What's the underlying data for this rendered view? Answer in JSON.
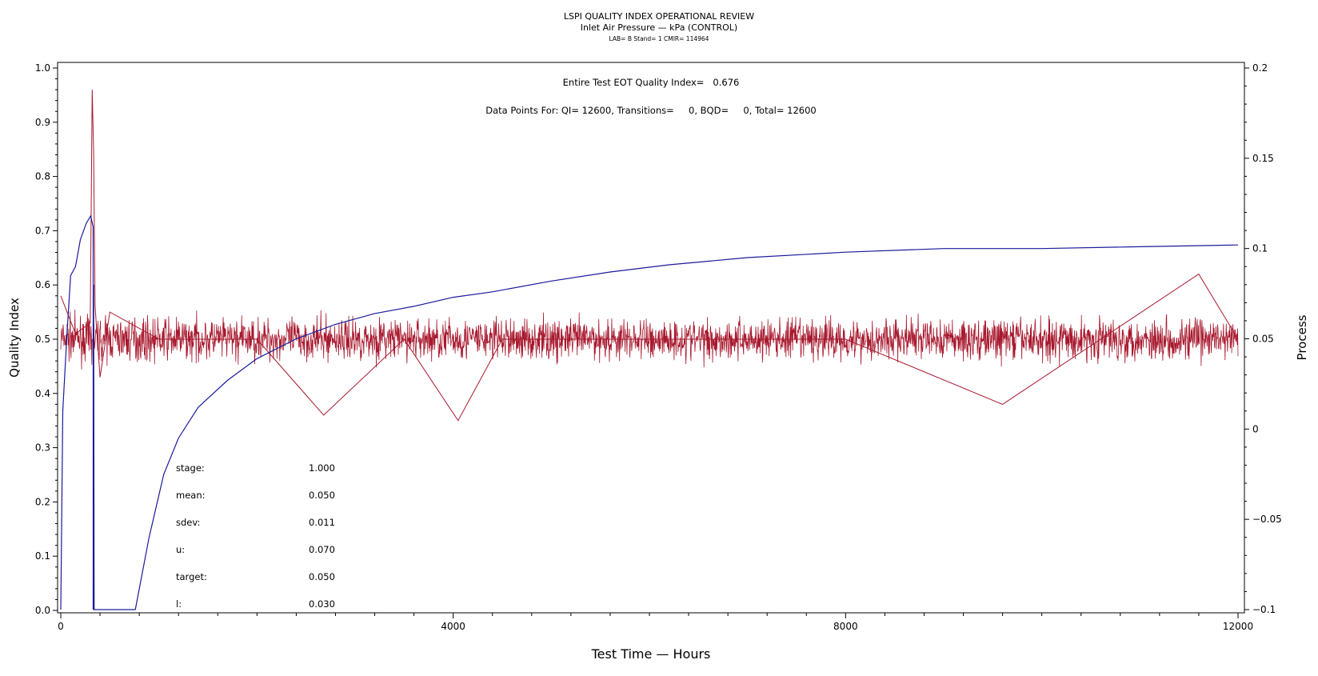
{
  "chart_data": {
    "type": "line",
    "title": "LSPI QUALITY INDEX OPERATIONAL REVIEW",
    "subtitle": "Inlet Air Pressure — kPa (CONTROL)",
    "info_line": "LAB= B Stand= 1 CMIR= 114964",
    "xlabel": "Test Time — Hours",
    "ylabel_left": "Quality Index",
    "ylabel_right": "Process",
    "xlim": [
      0,
      12000
    ],
    "ylim_left": [
      0.0,
      1.0
    ],
    "ylim_right": [
      -0.1,
      0.2
    ],
    "x_ticks": [
      "0",
      "4000",
      "8000",
      "12000"
    ],
    "y_left_ticks": [
      "0.0",
      "0.1",
      "0.2",
      "0.3",
      "0.4",
      "0.5",
      "0.6",
      "0.7",
      "0.8",
      "0.9",
      "1.0"
    ],
    "y_right_ticks": [
      "−0.1",
      "−0.05",
      "0",
      "0.05",
      "0.1",
      "0.15",
      "0.2"
    ],
    "annotations": {
      "eot": "Entire Test EOT Quality Index=   0.676",
      "points": "Data Points For: QI= 12600, Transitions=     0, BQD=     0, Total= 12600"
    },
    "stats": [
      {
        "label": "stage:",
        "value": "1.000"
      },
      {
        "label": "mean:",
        "value": "0.050"
      },
      {
        "label": "sdev:",
        "value": "0.011"
      },
      {
        "label": "u:",
        "value": "0.070"
      },
      {
        "label": "target:",
        "value": "0.050"
      },
      {
        "label": "l:",
        "value": "0.030"
      }
    ],
    "series": [
      {
        "key": "quality_index",
        "axis": "left",
        "color": "#a8192e",
        "style": "noisy band",
        "center": 0.5,
        "points": [
          [
            0,
            0.58
          ],
          [
            150,
            0.51
          ],
          [
            300,
            0.53
          ],
          [
            320,
            0.96
          ],
          [
            335,
            0.84
          ],
          [
            350,
            0.56
          ],
          [
            400,
            0.43
          ],
          [
            500,
            0.55
          ],
          [
            1000,
            0.5
          ],
          [
            2000,
            0.5
          ],
          [
            2680,
            0.36
          ],
          [
            3500,
            0.5
          ],
          [
            4050,
            0.35
          ],
          [
            4500,
            0.5
          ],
          [
            6000,
            0.5
          ],
          [
            8000,
            0.5
          ],
          [
            9600,
            0.38
          ],
          [
            11600,
            0.62
          ],
          [
            12000,
            0.5
          ]
        ]
      },
      {
        "key": "process",
        "axis": "right",
        "color": "#1a1a9c",
        "points": [
          [
            0,
            -0.1
          ],
          [
            20,
            0.01
          ],
          [
            60,
            0.05
          ],
          [
            100,
            0.085
          ],
          [
            150,
            0.09
          ],
          [
            200,
            0.105
          ],
          [
            260,
            0.114
          ],
          [
            305,
            0.118
          ],
          [
            330,
            0.112
          ],
          [
            330,
            -0.1
          ],
          [
            335,
            0.08
          ],
          [
            340,
            -0.1
          ],
          [
            760,
            -0.1
          ],
          [
            900,
            -0.06
          ],
          [
            1050,
            -0.025
          ],
          [
            1200,
            -0.005
          ],
          [
            1400,
            0.012
          ],
          [
            1700,
            0.027
          ],
          [
            2000,
            0.039
          ],
          [
            2400,
            0.05
          ],
          [
            2800,
            0.058
          ],
          [
            3200,
            0.064
          ],
          [
            3600,
            0.068
          ],
          [
            4000,
            0.073
          ],
          [
            4400,
            0.076
          ],
          [
            5000,
            0.082
          ],
          [
            5600,
            0.087
          ],
          [
            6200,
            0.091
          ],
          [
            7000,
            0.095
          ],
          [
            8000,
            0.098
          ],
          [
            9000,
            0.1
          ],
          [
            10000,
            0.1
          ],
          [
            11000,
            0.101
          ],
          [
            12000,
            0.102
          ]
        ]
      }
    ]
  }
}
